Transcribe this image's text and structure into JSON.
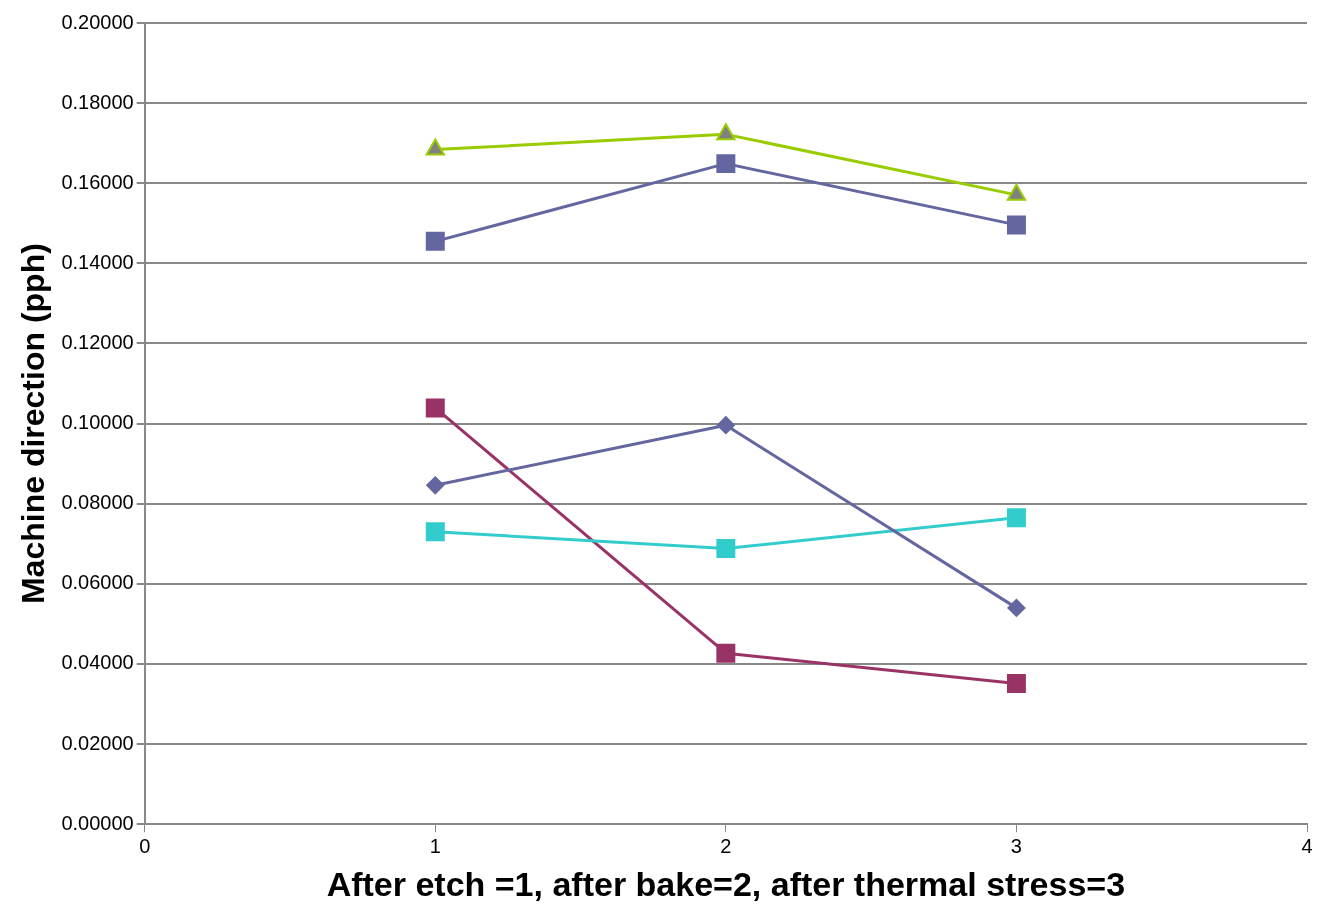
{
  "chart_data": {
    "type": "line",
    "xlabel": "After etch =1, after bake=2, after thermal stress=3",
    "ylabel": "Machine direction (pph)",
    "xlim": [
      0,
      4
    ],
    "xticks": [
      0,
      1,
      2,
      3,
      4
    ],
    "ylim": [
      0,
      0.2
    ],
    "yticks": [
      {
        "value": 0,
        "label": "0.00000"
      },
      {
        "value": 0.02,
        "label": "0.02000"
      },
      {
        "value": 0.04,
        "label": "0.04000"
      },
      {
        "value": 0.06,
        "label": "0.06000"
      },
      {
        "value": 0.08,
        "label": "0.08000"
      },
      {
        "value": 0.1,
        "label": "0.10000"
      },
      {
        "value": 0.12,
        "label": "0.12000"
      },
      {
        "value": 0.14,
        "label": "0.14000"
      },
      {
        "value": 0.16,
        "label": "0.16000"
      },
      {
        "value": 0.18,
        "label": "0.18000"
      },
      {
        "value": 0.2,
        "label": "0.20000"
      }
    ],
    "grid": "y",
    "legend": false,
    "line_style": "solid",
    "x": [
      1,
      2,
      3
    ],
    "series": [
      {
        "color": "#99cc00",
        "marker": "triangle",
        "values": [
          0.1684,
          0.1722,
          0.1571
        ]
      },
      {
        "color": "#6466a0",
        "marker": "square",
        "values": [
          0.1455,
          0.1649,
          0.1496
        ]
      },
      {
        "color": "#6466a0",
        "marker": "diamond",
        "values": [
          0.0846,
          0.0996,
          0.054
        ]
      },
      {
        "color": "#33cccc",
        "marker": "square",
        "values": [
          0.073,
          0.0688,
          0.0765
        ]
      },
      {
        "color": "#993366",
        "marker": "square",
        "values": [
          0.1039,
          0.0427,
          0.0351
        ]
      }
    ]
  }
}
